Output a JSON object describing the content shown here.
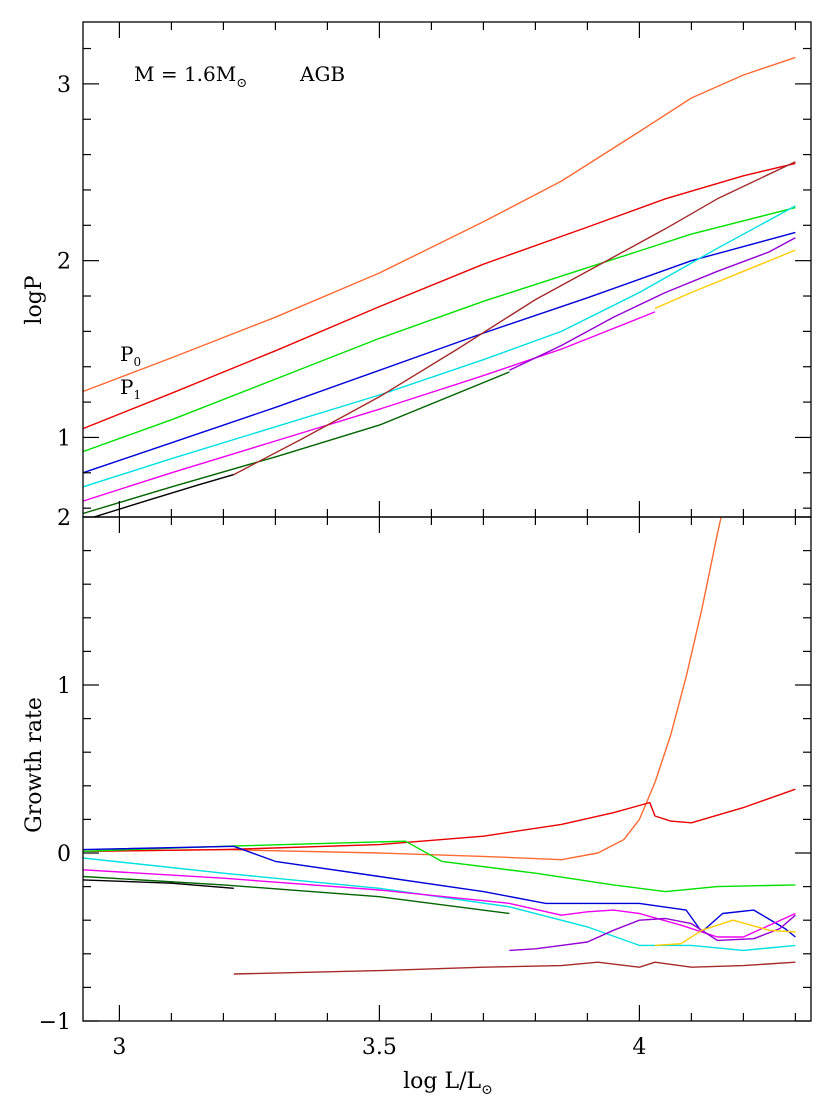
{
  "chart_data": [
    {
      "type": "line",
      "panel": "top",
      "ylabel": "logP",
      "xlabel": "",
      "xlim": [
        2.93,
        4.33
      ],
      "ylim": [
        0.55,
        3.35
      ],
      "xticks": [
        3,
        3.5,
        4
      ],
      "yticks": [
        1,
        2,
        3
      ],
      "ytick_labels": [
        "1",
        "2",
        "3"
      ],
      "annotation_title": "M = 1.6M",
      "annotation_title_sub": "⊙",
      "annotation_tag": "AGB",
      "mode_labels": [
        {
          "text": "P",
          "sub": "0",
          "at": [
            2.95,
            1.41
          ]
        },
        {
          "text": "P",
          "sub": "1",
          "at": [
            2.95,
            1.24
          ]
        }
      ],
      "series": [
        {
          "color": "#ff6a33",
          "x": [
            2.93,
            3.1,
            3.3,
            3.5,
            3.7,
            3.85,
            4.0,
            4.1,
            4.2,
            4.3
          ],
          "y": [
            1.26,
            1.45,
            1.68,
            1.93,
            2.22,
            2.45,
            2.73,
            2.92,
            3.05,
            3.15
          ]
        },
        {
          "color": "#e80000",
          "x": [
            2.93,
            3.1,
            3.3,
            3.5,
            3.7,
            3.9,
            4.05,
            4.2,
            4.3
          ],
          "y": [
            1.05,
            1.25,
            1.49,
            1.74,
            1.98,
            2.19,
            2.35,
            2.48,
            2.55
          ]
        },
        {
          "color": "#00e000",
          "x": [
            2.93,
            3.1,
            3.3,
            3.5,
            3.7,
            3.9,
            4.1,
            4.3
          ],
          "y": [
            0.92,
            1.1,
            1.33,
            1.56,
            1.77,
            1.96,
            2.15,
            2.3
          ]
        },
        {
          "color": "#0000d8",
          "x": [
            2.93,
            3.1,
            3.3,
            3.5,
            3.7,
            3.9,
            4.1,
            4.3
          ],
          "y": [
            0.8,
            0.97,
            1.17,
            1.38,
            1.59,
            1.79,
            2.0,
            2.16
          ]
        },
        {
          "color": "#00e0e0",
          "x": [
            2.93,
            3.1,
            3.3,
            3.5,
            3.7,
            3.85,
            4.0,
            4.15,
            4.3
          ],
          "y": [
            0.72,
            0.88,
            1.06,
            1.24,
            1.44,
            1.6,
            1.82,
            2.07,
            2.31
          ]
        },
        {
          "color": "#ee00ee",
          "x": [
            2.93,
            3.1,
            3.3,
            3.5,
            3.7,
            3.85,
            4.03
          ],
          "y": [
            0.64,
            0.8,
            0.98,
            1.16,
            1.35,
            1.5,
            1.71
          ]
        },
        {
          "color": "#006400",
          "x": [
            2.93,
            3.1,
            3.3,
            3.5,
            3.75
          ],
          "y": [
            0.57,
            0.72,
            0.89,
            1.07,
            1.37
          ]
        },
        {
          "color": "#000000",
          "x": [
            2.94,
            3.05,
            3.15,
            3.22
          ],
          "y": [
            0.54,
            0.64,
            0.73,
            0.79
          ]
        },
        {
          "color": "#a52a2a",
          "x": [
            3.22,
            3.35,
            3.5,
            3.65,
            3.8,
            3.95,
            4.05,
            4.15,
            4.3
          ],
          "y": [
            0.79,
            0.99,
            1.23,
            1.5,
            1.78,
            2.02,
            2.18,
            2.35,
            2.56
          ]
        },
        {
          "color": "#9400d3",
          "x": [
            3.75,
            3.85,
            3.95,
            4.05,
            4.15,
            4.25,
            4.3
          ],
          "y": [
            1.38,
            1.52,
            1.68,
            1.82,
            1.94,
            2.05,
            2.13
          ]
        },
        {
          "color": "#ffcc00",
          "x": [
            4.03,
            4.1,
            4.2,
            4.3
          ],
          "y": [
            1.73,
            1.82,
            1.94,
            2.06
          ]
        }
      ]
    },
    {
      "type": "line",
      "panel": "bottom",
      "ylabel": "Growth rate",
      "xlabel": "log L/L",
      "xlabel_sub": "⊙",
      "xlim": [
        2.93,
        4.33
      ],
      "ylim": [
        -1.0,
        2.0
      ],
      "xticks": [
        3,
        3.5,
        4
      ],
      "xtick_labels": [
        "3",
        "3.5",
        "4"
      ],
      "yticks": [
        -1,
        0,
        1,
        2
      ],
      "ytick_labels": [
        "−1",
        "0",
        "1",
        "2"
      ],
      "series": [
        {
          "color": "#ff6a33",
          "x": [
            2.93,
            3.2,
            3.5,
            3.7,
            3.85,
            3.92,
            3.97,
            4.0,
            4.03,
            4.06,
            4.09,
            4.12,
            4.15,
            4.175
          ],
          "y": [
            0.01,
            0.02,
            0.0,
            -0.02,
            -0.04,
            0.0,
            0.08,
            0.2,
            0.42,
            0.7,
            1.05,
            1.45,
            1.9,
            2.25
          ]
        },
        {
          "color": "#e80000",
          "x": [
            2.93,
            3.2,
            3.5,
            3.7,
            3.85,
            3.95,
            4.02,
            4.03,
            4.06,
            4.1,
            4.2,
            4.3
          ],
          "y": [
            0.01,
            0.02,
            0.05,
            0.1,
            0.17,
            0.24,
            0.3,
            0.22,
            0.19,
            0.18,
            0.27,
            0.38
          ]
        },
        {
          "color": "#00e000",
          "x": [
            2.93,
            3.2,
            3.55,
            3.62,
            3.8,
            3.95,
            4.05,
            4.15,
            4.3
          ],
          "y": [
            0.01,
            0.04,
            0.07,
            -0.05,
            -0.12,
            -0.19,
            -0.23,
            -0.2,
            -0.19
          ]
        },
        {
          "color": "#0000d8",
          "x": [
            2.93,
            3.22,
            3.3,
            3.5,
            3.7,
            3.82,
            4.0,
            4.09,
            4.12,
            4.16,
            4.22,
            4.28,
            4.3
          ],
          "y": [
            0.02,
            0.04,
            -0.05,
            -0.14,
            -0.23,
            -0.3,
            -0.3,
            -0.34,
            -0.47,
            -0.36,
            -0.34,
            -0.45,
            -0.5
          ]
        },
        {
          "color": "#00e0e0",
          "x": [
            2.93,
            3.2,
            3.5,
            3.75,
            3.9,
            4.0,
            4.1,
            4.2,
            4.3
          ],
          "y": [
            -0.03,
            -0.12,
            -0.21,
            -0.32,
            -0.44,
            -0.55,
            -0.55,
            -0.58,
            -0.55
          ]
        },
        {
          "color": "#ee00ee",
          "x": [
            2.93,
            3.2,
            3.5,
            3.75,
            3.85,
            3.9,
            3.95,
            4.0,
            4.08,
            4.15,
            4.2,
            4.3
          ],
          "y": [
            -0.1,
            -0.15,
            -0.22,
            -0.3,
            -0.37,
            -0.35,
            -0.34,
            -0.36,
            -0.43,
            -0.5,
            -0.5,
            -0.36
          ]
        },
        {
          "color": "#006400",
          "x": [
            2.93,
            3.2,
            3.5,
            3.75
          ],
          "y": [
            -0.14,
            -0.19,
            -0.26,
            -0.36
          ]
        },
        {
          "color": "#000000",
          "x": [
            2.93,
            3.1,
            3.22
          ],
          "y": [
            -0.16,
            -0.18,
            -0.21
          ]
        },
        {
          "color": "#a52a2a",
          "x": [
            3.22,
            3.5,
            3.7,
            3.85,
            3.92,
            4.0,
            4.03,
            4.1,
            4.2,
            4.3
          ],
          "y": [
            -0.72,
            -0.7,
            -0.68,
            -0.67,
            -0.65,
            -0.68,
            -0.65,
            -0.68,
            -0.67,
            -0.65
          ]
        },
        {
          "color": "#9400d3",
          "x": [
            3.75,
            3.8,
            3.85,
            3.9,
            3.95,
            4.0,
            4.05,
            4.1,
            4.15,
            4.22,
            4.27,
            4.3
          ],
          "y": [
            -0.58,
            -0.57,
            -0.55,
            -0.53,
            -0.46,
            -0.4,
            -0.39,
            -0.42,
            -0.52,
            -0.51,
            -0.45,
            -0.37
          ]
        },
        {
          "color": "#ffcc00",
          "x": [
            4.03,
            4.08,
            4.12,
            4.18,
            4.25,
            4.3
          ],
          "y": [
            -0.55,
            -0.54,
            -0.46,
            -0.4,
            -0.46,
            -0.47
          ]
        }
      ]
    }
  ]
}
